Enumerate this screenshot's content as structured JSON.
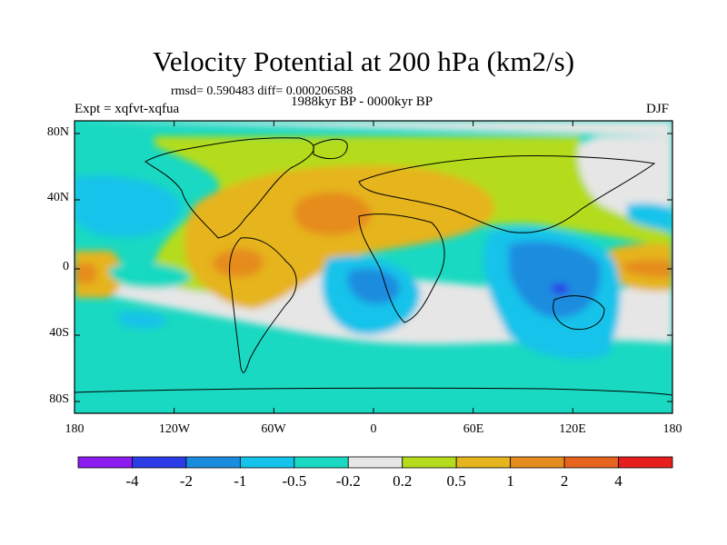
{
  "title": "Velocity Potential at 200 hPa (km2/s)",
  "stats_text": "rmsd= 0.590483 diff= 0.000206588",
  "experiment_text": "Expt = xqfvt-xqfua",
  "period_text": "1988kyr BP - 0000kyr BP",
  "season_text": "DJF",
  "map": {
    "projection": "cylindrical equidistant",
    "lon_range": [
      -180,
      180
    ],
    "lat_range": [
      -90,
      90
    ],
    "lat_ticks": [
      "80N",
      "40N",
      "0",
      "40S",
      "80S"
    ],
    "lon_ticks": [
      "180",
      "120W",
      "60W",
      "0",
      "60E",
      "120E",
      "180"
    ]
  },
  "colorbar": {
    "labels": [
      "-4",
      "-2",
      "-1",
      "-0.5",
      "-0.2",
      "0.2",
      "0.5",
      "1",
      "2",
      "4"
    ],
    "colors": [
      "#8c1cf0",
      "#2c3ce6",
      "#1a8cdf",
      "#14c3ea",
      "#19d9c2",
      "#e6e6e6",
      "#b4dc1c",
      "#e6b41e",
      "#e68c1e",
      "#e6641e",
      "#e61e1e"
    ]
  }
}
